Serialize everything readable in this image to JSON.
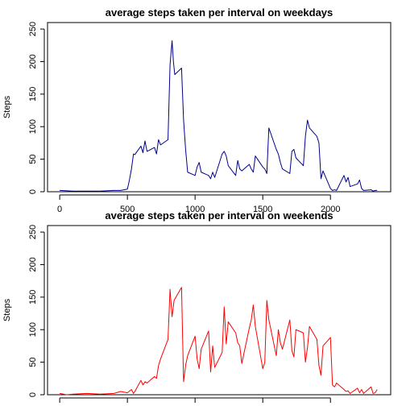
{
  "colors": {
    "weekday_series": "#00008B",
    "weekend_series": "#FF0000",
    "axis": "#000000"
  },
  "chart_data": [
    {
      "type": "line",
      "title": "average steps taken per interval on weekdays",
      "xlabel": "",
      "ylabel": "Steps",
      "xlim": [
        -90,
        2445
      ],
      "ylim": [
        0,
        260
      ],
      "x_ticks": [
        0,
        500,
        1000,
        1500,
        2000
      ],
      "x_tick_labels": [
        "0",
        "500",
        "1000",
        "1500",
        "2000"
      ],
      "y_ticks": [
        0,
        50,
        100,
        150,
        200,
        250
      ],
      "y_tick_labels": [
        "0",
        "50",
        "100",
        "150",
        "200",
        "250"
      ],
      "grid": false,
      "legend": "none",
      "series": [
        {
          "color": "#00008B",
          "x": [
            0,
            100,
            200,
            300,
            400,
            450,
            500,
            515,
            530,
            545,
            555,
            600,
            615,
            630,
            645,
            700,
            715,
            730,
            745,
            800,
            815,
            830,
            840,
            850,
            900,
            915,
            930,
            945,
            1000,
            1015,
            1030,
            1045,
            1100,
            1115,
            1130,
            1145,
            1200,
            1215,
            1230,
            1245,
            1300,
            1315,
            1330,
            1345,
            1400,
            1415,
            1430,
            1445,
            1500,
            1515,
            1530,
            1545,
            1600,
            1615,
            1630,
            1645,
            1700,
            1715,
            1730,
            1745,
            1800,
            1815,
            1830,
            1845,
            1900,
            1915,
            1930,
            1945,
            2000,
            2015,
            2030,
            2045,
            2100,
            2115,
            2130,
            2145,
            2200,
            2215,
            2230,
            2245,
            2300,
            2315,
            2330,
            2345
          ],
          "y": [
            2,
            1,
            1,
            1,
            2,
            2,
            4,
            18,
            35,
            58,
            57,
            70,
            60,
            78,
            62,
            68,
            58,
            80,
            72,
            80,
            195,
            232,
            200,
            180,
            190,
            110,
            65,
            30,
            25,
            38,
            45,
            30,
            25,
            20,
            30,
            22,
            58,
            62,
            55,
            40,
            25,
            48,
            35,
            32,
            42,
            35,
            30,
            55,
            38,
            35,
            28,
            98,
            65,
            58,
            45,
            35,
            28,
            62,
            65,
            52,
            40,
            85,
            110,
            98,
            85,
            75,
            20,
            32,
            5,
            2,
            3,
            2,
            25,
            15,
            22,
            8,
            12,
            18,
            5,
            2,
            3,
            1,
            2,
            2
          ]
        }
      ]
    },
    {
      "type": "line",
      "title": "average steps taken per interval on weekends",
      "xlabel": "",
      "ylabel": "Steps",
      "xlim": [
        -90,
        2445
      ],
      "ylim": [
        0,
        260
      ],
      "x_ticks": [
        0,
        500,
        1000,
        1500,
        2000
      ],
      "y_ticks": [
        0,
        50,
        100,
        150,
        200,
        250
      ],
      "y_tick_labels": [
        "0",
        "50",
        "100",
        "150",
        "200",
        "250"
      ],
      "grid": false,
      "legend": "none",
      "series": [
        {
          "color": "#FF0000",
          "x": [
            0,
            50,
            100,
            200,
            300,
            400,
            450,
            500,
            530,
            545,
            555,
            600,
            615,
            630,
            645,
            700,
            715,
            730,
            745,
            800,
            815,
            830,
            845,
            900,
            915,
            930,
            945,
            1000,
            1015,
            1030,
            1045,
            1100,
            1115,
            1130,
            1145,
            1200,
            1215,
            1230,
            1245,
            1300,
            1315,
            1330,
            1345,
            1400,
            1415,
            1430,
            1445,
            1500,
            1515,
            1530,
            1545,
            1600,
            1615,
            1630,
            1645,
            1700,
            1715,
            1730,
            1745,
            1800,
            1815,
            1830,
            1845,
            1900,
            1915,
            1930,
            1945,
            2000,
            2015,
            2030,
            2045,
            2100,
            2115,
            2130,
            2145,
            2200,
            2215,
            2230,
            2245,
            2300,
            2315,
            2330,
            2345
          ],
          "y": [
            2,
            0,
            1,
            2,
            1,
            2,
            5,
            3,
            8,
            2,
            5,
            22,
            15,
            20,
            18,
            28,
            25,
            45,
            55,
            85,
            162,
            120,
            145,
            165,
            20,
            45,
            60,
            90,
            55,
            40,
            70,
            98,
            35,
            75,
            42,
            65,
            135,
            78,
            112,
            95,
            80,
            75,
            48,
            102,
            115,
            138,
            105,
            40,
            50,
            145,
            115,
            60,
            100,
            80,
            70,
            115,
            68,
            58,
            100,
            95,
            50,
            72,
            105,
            85,
            45,
            30,
            75,
            88,
            15,
            12,
            18,
            8,
            5,
            6,
            2,
            10,
            3,
            8,
            2,
            12,
            2,
            3,
            8
          ]
        }
      ]
    }
  ]
}
